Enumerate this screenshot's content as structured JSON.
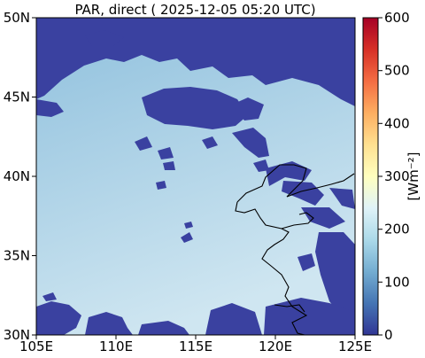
{
  "title": "PAR, direct ( 2025-12-05 05:20 UTC)",
  "map": {
    "lon_ticks": [
      "105E",
      "110E",
      "115E",
      "120E",
      "125E"
    ],
    "lat_ticks": [
      "30N",
      "35N",
      "40N",
      "45N",
      "50N"
    ],
    "lon_range": [
      105,
      125
    ],
    "lat_range": [
      30,
      50
    ]
  },
  "colorbar": {
    "label": "[Wm⁻²]",
    "ticks": [
      "0",
      "100",
      "200",
      "300",
      "400",
      "500",
      "600"
    ],
    "range": [
      0,
      600
    ],
    "colors": [
      "#313695",
      "#4575b4",
      "#74add1",
      "#abd9e9",
      "#e0f3f8",
      "#ffffbf",
      "#fee090",
      "#fdae61",
      "#f46d43",
      "#d73027",
      "#a50026"
    ]
  },
  "colors": {
    "cloud": "#3a41a0",
    "sky_top": "#8fc0dd",
    "sky_bottom": "#cfe6f1",
    "coast": "#000000"
  }
}
